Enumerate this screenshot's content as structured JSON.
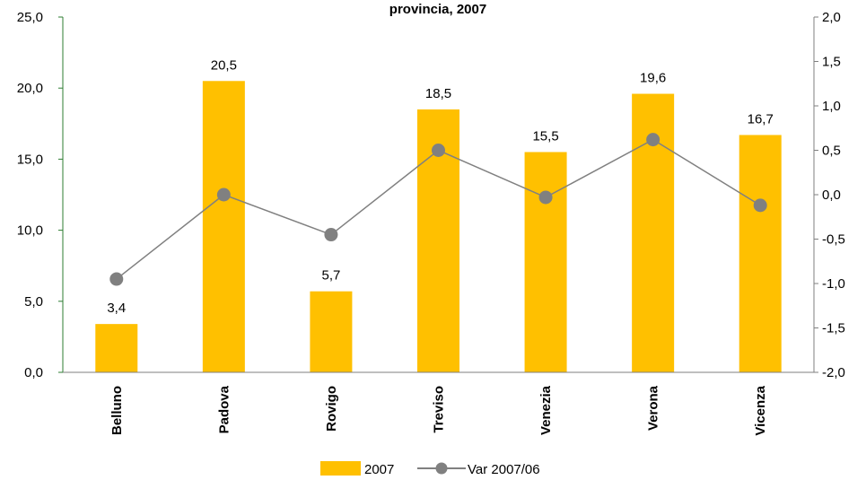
{
  "chart_data": {
    "type": "bar",
    "title": "provincia, 2007",
    "categories": [
      "Belluno",
      "Padova",
      "Rovigo",
      "Treviso",
      "Venezia",
      "Verona",
      "Vicenza"
    ],
    "series": [
      {
        "name": "2007",
        "kind": "bar",
        "axis": "left",
        "color": "#FFC000",
        "values": [
          3.4,
          20.5,
          5.7,
          18.5,
          15.5,
          19.6,
          16.7
        ],
        "value_labels": [
          "3,4",
          "20,5",
          "5,7",
          "18,5",
          "15,5",
          "19,6",
          "16,7"
        ]
      },
      {
        "name": "Var 2007/06",
        "kind": "line",
        "axis": "right",
        "color": "#808080",
        "values": [
          -0.95,
          0.0,
          -0.45,
          0.5,
          -0.03,
          0.62,
          -0.12
        ]
      }
    ],
    "y_left": {
      "lim": [
        0,
        25
      ],
      "ticks": [
        0,
        5,
        10,
        15,
        20,
        25
      ],
      "tick_labels": [
        "0,0",
        "5,0",
        "10,0",
        "15,0",
        "20,0",
        "25,0"
      ]
    },
    "y_right": {
      "lim": [
        -2,
        2
      ],
      "ticks": [
        -2,
        -1.5,
        -1,
        -0.5,
        0,
        0.5,
        1,
        1.5,
        2
      ],
      "tick_labels": [
        "-2,0",
        "-1,5",
        "-1,0",
        "-0,5",
        "0,0",
        "0,5",
        "1,0",
        "1,5",
        "2,0"
      ]
    },
    "grid": false,
    "legend_position": "bottom",
    "left_axis_color": "#2E7D32"
  }
}
